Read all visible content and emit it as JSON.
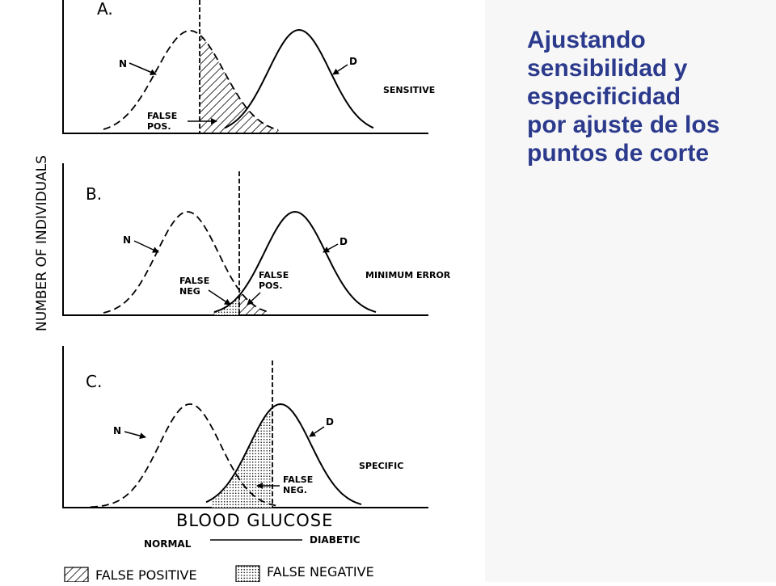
{
  "title_lines": [
    "Ajustando",
    "sensibilidad y",
    "especificidad",
    "por ajuste de los",
    "puntos de corte"
  ],
  "figure": {
    "y_axis_label": "NUMBER OF INDIVIDUALS",
    "x_axis_label": "BLOOD  GLUCOSE",
    "x_axis_left": "NORMAL",
    "x_axis_right": "DIABETIC",
    "panels": [
      {
        "id": "A",
        "letter": "A.",
        "normal_label": "N",
        "diabetic_label": "D",
        "condition": "SENSITIVE",
        "annotations": [
          {
            "lines": [
              "FALSE",
              "POS."
            ],
            "type": "false-positive"
          }
        ]
      },
      {
        "id": "B",
        "letter": "B.",
        "normal_label": "N",
        "diabetic_label": "D",
        "condition": "MINIMUM ERROR",
        "annotations": [
          {
            "lines": [
              "FALSE",
              "NEG"
            ],
            "type": "false-negative"
          },
          {
            "lines": [
              "FALSE",
              "POS."
            ],
            "type": "false-positive"
          }
        ]
      },
      {
        "id": "C",
        "letter": "C.",
        "normal_label": "N",
        "diabetic_label": "D",
        "condition": "SPECIFIC",
        "annotations": [
          {
            "lines": [
              "FALSE",
              "NEG."
            ],
            "type": "false-negative"
          }
        ]
      }
    ],
    "legend": [
      {
        "label": "FALSE POSITIVE",
        "pattern": "hatch"
      },
      {
        "label": "FALSE NEGATIVE",
        "pattern": "dots"
      }
    ]
  }
}
